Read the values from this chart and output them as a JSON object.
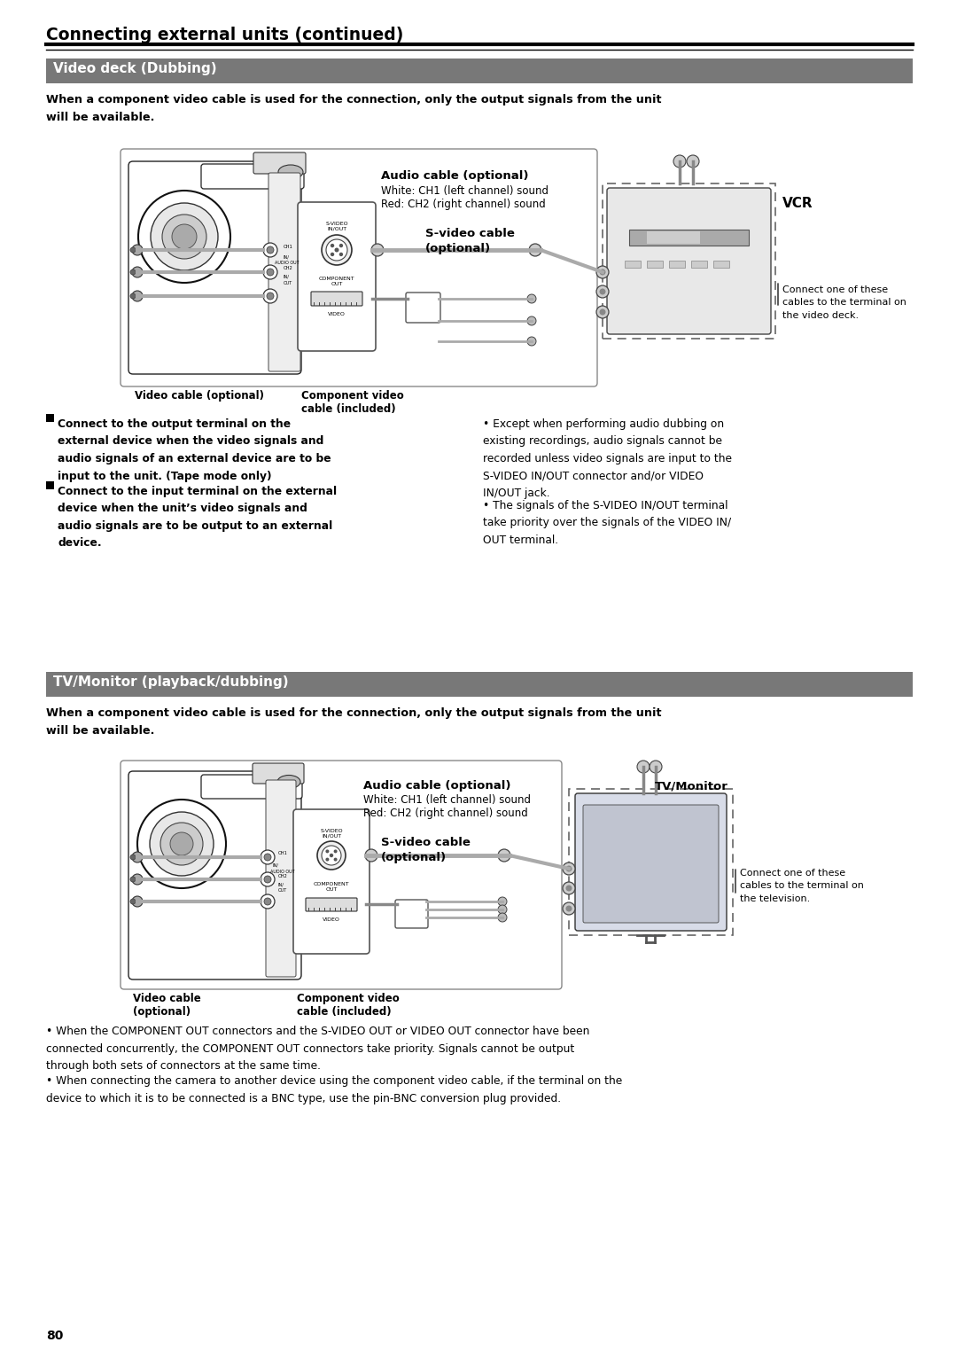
{
  "title": "Connecting external units (continued)",
  "section1_title": "Video deck (Dubbing)",
  "section2_title": "TV/Monitor (playback/dubbing)",
  "header_bg": "#787878",
  "header_text_color": "#ffffff",
  "page_number": "80",
  "intro_text": "When a component video cable is used for the connection, only the output signals from the unit\nwill be available.",
  "diag1": {
    "audio_cable_bold": "Audio cable (optional)",
    "audio_white": "White: CH1 (left channel) sound",
    "audio_red": "Red: CH2 (right channel) sound",
    "svideo_bold": "S-video cable",
    "svideo_opt": "(optional)",
    "vcr": "VCR",
    "video_cable": "Video cable (optional)",
    "component_bold": "Component video",
    "component_inc": "cable (included)",
    "connect_note": "Connect one of these\ncables to the terminal on\nthe video deck."
  },
  "diag2": {
    "audio_cable_bold": "Audio cable (optional)",
    "audio_white": "White: CH1 (left channel) sound",
    "audio_red": "Red: CH2 (right channel) sound",
    "svideo_bold": "S-video cable",
    "svideo_opt": "(optional)",
    "tv_monitor": "TV/Monitor",
    "video_cable_bold": "Video cable",
    "video_opt": "(optional)",
    "component_bold": "Component video",
    "component_inc": "cable (included)",
    "connect_note": "Connect one of these\ncables to the terminal on\nthe television."
  },
  "bullets1_left": [
    [
      true,
      "Connect to the output terminal on the\nexternal device when the video signals and\naudio signals of an external device are to be\ninput to the unit. (Tape mode only)"
    ],
    [
      true,
      "Connect to the input terminal on the external\ndevice when the unit’s video signals and\naudio signals are to be output to an external\ndevice."
    ]
  ],
  "bullets1_right": [
    [
      false,
      "Except when performing audio dubbing on\nexisting recordings, audio signals cannot be\nrecorded unless video signals are input to the\nS-VIDEO IN/OUT connector and/or VIDEO\nIN/OUT jack."
    ],
    [
      false,
      "The signals of the S-VIDEO IN/OUT terminal\ntake priority over the signals of the VIDEO IN/\nOUT terminal."
    ]
  ],
  "bullets2": [
    "When the COMPONENT OUT connectors and the S-VIDEO OUT or VIDEO OUT connector have been\nconnected concurrently, the COMPONENT OUT connectors take priority. Signals cannot be output\nthrough both sets of connectors at the same time.",
    "When connecting the camera to another device using the component video cable, if the terminal on the\ndevice to which it is to be connected is a BNC type, use the pin-BNC conversion plug provided."
  ],
  "bg_color": "#ffffff",
  "line_color": "#000000",
  "gray_bg": "#eeeeee",
  "dark_gray": "#555555"
}
